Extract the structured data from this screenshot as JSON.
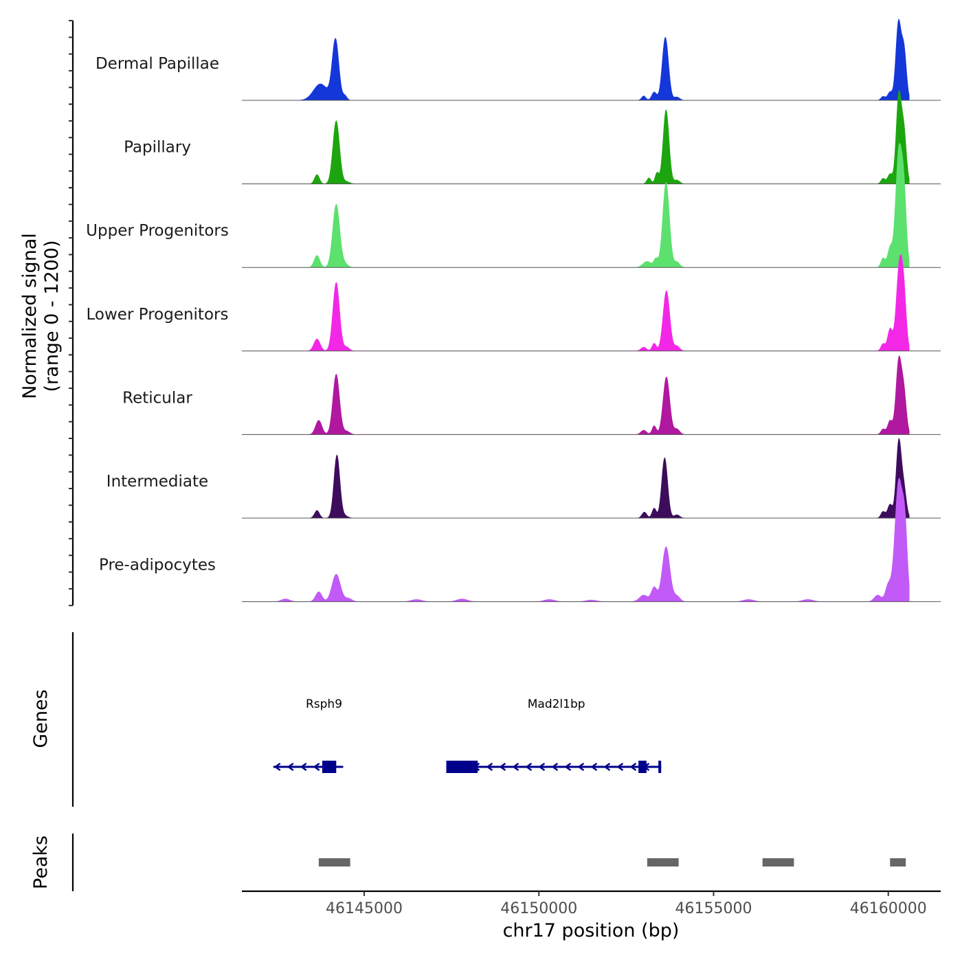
{
  "chart_data": {
    "type": "area",
    "subtype": "genome-coverage-tracks",
    "chromosome": "chr17",
    "xlabel": "chr17 position (bp)",
    "ylabel_line1": "Normalized signal",
    "ylabel_line2": "(range 0 - 1200)",
    "ylim": [
      0,
      1200
    ],
    "xlim": [
      46141500,
      46161500
    ],
    "x_ticks": [
      46145000,
      46150000,
      46155000,
      46160000
    ],
    "x_tick_labels": [
      "46145000",
      "46150000",
      "46155000",
      "46160000"
    ],
    "region_end": 46160600,
    "series": [
      {
        "name": "Dermal Papillae",
        "color": "#1437d9",
        "peaks": [
          {
            "center": 46143750,
            "height": 300,
            "width": 200
          },
          {
            "center": 46144180,
            "height": 1100,
            "width": 95
          },
          {
            "center": 46144450,
            "height": 80,
            "width": 60
          },
          {
            "center": 46153000,
            "height": 80,
            "width": 60
          },
          {
            "center": 46153300,
            "height": 150,
            "width": 70
          },
          {
            "center": 46153620,
            "height": 1150,
            "width": 90
          },
          {
            "center": 46153950,
            "height": 60,
            "width": 80
          },
          {
            "center": 46159850,
            "height": 70,
            "width": 60
          },
          {
            "center": 46160050,
            "height": 150,
            "width": 70
          },
          {
            "center": 46160290,
            "height": 1400,
            "width": 75
          },
          {
            "center": 46160450,
            "height": 900,
            "width": 70
          }
        ]
      },
      {
        "name": "Papillary",
        "color": "#1da50f",
        "peaks": [
          {
            "center": 46143650,
            "height": 170,
            "width": 70
          },
          {
            "center": 46144200,
            "height": 1150,
            "width": 95
          },
          {
            "center": 46144500,
            "height": 40,
            "width": 90
          },
          {
            "center": 46153150,
            "height": 110,
            "width": 60
          },
          {
            "center": 46153380,
            "height": 200,
            "width": 55
          },
          {
            "center": 46153640,
            "height": 1350,
            "width": 85
          },
          {
            "center": 46153950,
            "height": 70,
            "width": 80
          },
          {
            "center": 46159850,
            "height": 100,
            "width": 60
          },
          {
            "center": 46160050,
            "height": 180,
            "width": 70
          },
          {
            "center": 46160300,
            "height": 1600,
            "width": 75
          },
          {
            "center": 46160450,
            "height": 900,
            "width": 70
          }
        ]
      },
      {
        "name": "Upper Progenitors",
        "color": "#5ce06e",
        "peaks": [
          {
            "center": 46143650,
            "height": 220,
            "width": 80
          },
          {
            "center": 46144200,
            "height": 1150,
            "width": 100
          },
          {
            "center": 46144450,
            "height": 60,
            "width": 90
          },
          {
            "center": 46153100,
            "height": 110,
            "width": 120
          },
          {
            "center": 46153350,
            "height": 150,
            "width": 60
          },
          {
            "center": 46153640,
            "height": 1550,
            "width": 95
          },
          {
            "center": 46153950,
            "height": 100,
            "width": 80
          },
          {
            "center": 46159850,
            "height": 170,
            "width": 60
          },
          {
            "center": 46160050,
            "height": 350,
            "width": 70
          },
          {
            "center": 46160300,
            "height": 2100,
            "width": 90
          },
          {
            "center": 46160450,
            "height": 1200,
            "width": 70
          }
        ]
      },
      {
        "name": "Lower Progenitors",
        "color": "#f228e6",
        "peaks": [
          {
            "center": 46143650,
            "height": 220,
            "width": 90
          },
          {
            "center": 46144200,
            "height": 1250,
            "width": 95
          },
          {
            "center": 46144500,
            "height": 70,
            "width": 80
          },
          {
            "center": 46153000,
            "height": 70,
            "width": 80
          },
          {
            "center": 46153300,
            "height": 140,
            "width": 60
          },
          {
            "center": 46153650,
            "height": 1100,
            "width": 95
          },
          {
            "center": 46153950,
            "height": 90,
            "width": 80
          },
          {
            "center": 46159850,
            "height": 130,
            "width": 60
          },
          {
            "center": 46160050,
            "height": 400,
            "width": 70
          },
          {
            "center": 46160320,
            "height": 1550,
            "width": 90
          },
          {
            "center": 46160450,
            "height": 800,
            "width": 70
          }
        ]
      },
      {
        "name": "Reticular",
        "color": "#b0189f",
        "peaks": [
          {
            "center": 46143700,
            "height": 260,
            "width": 90
          },
          {
            "center": 46144200,
            "height": 1100,
            "width": 95
          },
          {
            "center": 46144500,
            "height": 60,
            "width": 90
          },
          {
            "center": 46153000,
            "height": 80,
            "width": 80
          },
          {
            "center": 46153300,
            "height": 160,
            "width": 60
          },
          {
            "center": 46153650,
            "height": 1050,
            "width": 95
          },
          {
            "center": 46153950,
            "height": 100,
            "width": 80
          },
          {
            "center": 46159850,
            "height": 100,
            "width": 60
          },
          {
            "center": 46160050,
            "height": 250,
            "width": 70
          },
          {
            "center": 46160300,
            "height": 1350,
            "width": 80
          },
          {
            "center": 46160450,
            "height": 700,
            "width": 70
          }
        ]
      },
      {
        "name": "Intermediate",
        "color": "#3d0c5c",
        "peaks": [
          {
            "center": 46143650,
            "height": 140,
            "width": 70
          },
          {
            "center": 46144220,
            "height": 1150,
            "width": 85
          },
          {
            "center": 46144450,
            "height": 40,
            "width": 90
          },
          {
            "center": 46153020,
            "height": 110,
            "width": 70
          },
          {
            "center": 46153300,
            "height": 180,
            "width": 60
          },
          {
            "center": 46153600,
            "height": 1100,
            "width": 85
          },
          {
            "center": 46153950,
            "height": 60,
            "width": 80
          },
          {
            "center": 46159850,
            "height": 120,
            "width": 60
          },
          {
            "center": 46160050,
            "height": 250,
            "width": 70
          },
          {
            "center": 46160300,
            "height": 1400,
            "width": 75
          },
          {
            "center": 46160450,
            "height": 500,
            "width": 70
          }
        ]
      },
      {
        "name": "Pre-adipocytes",
        "color": "#c15af7",
        "peaks": [
          {
            "center": 46142750,
            "height": 50,
            "width": 120
          },
          {
            "center": 46143700,
            "height": 180,
            "width": 90
          },
          {
            "center": 46144200,
            "height": 500,
            "width": 120
          },
          {
            "center": 46144550,
            "height": 60,
            "width": 100
          },
          {
            "center": 46146500,
            "height": 40,
            "width": 150
          },
          {
            "center": 46147800,
            "height": 50,
            "width": 150
          },
          {
            "center": 46150300,
            "height": 40,
            "width": 150
          },
          {
            "center": 46151500,
            "height": 30,
            "width": 150
          },
          {
            "center": 46153000,
            "height": 120,
            "width": 120
          },
          {
            "center": 46153300,
            "height": 260,
            "width": 80
          },
          {
            "center": 46153640,
            "height": 1000,
            "width": 110
          },
          {
            "center": 46153950,
            "height": 100,
            "width": 90
          },
          {
            "center": 46156000,
            "height": 40,
            "width": 150
          },
          {
            "center": 46157700,
            "height": 40,
            "width": 150
          },
          {
            "center": 46159700,
            "height": 120,
            "width": 100
          },
          {
            "center": 46160000,
            "height": 300,
            "width": 80
          },
          {
            "center": 46160300,
            "height": 2200,
            "width": 110
          },
          {
            "center": 46160480,
            "height": 1100,
            "width": 70
          }
        ]
      }
    ],
    "genes_track": {
      "title": "Genes",
      "color": "#00008b",
      "genes": [
        {
          "name": "Rsph9",
          "start": 46142400,
          "end": 46144400,
          "strand": "-",
          "exons": [
            [
              46143800,
              46144200
            ]
          ],
          "label_at": 46143850
        },
        {
          "name": "Mad2l1bp",
          "start": 46147350,
          "end": 46153500,
          "strand": "-",
          "exons": [
            [
              46147350,
              46148250
            ],
            [
              46152850,
              46153080
            ],
            [
              46153420,
              46153500
            ]
          ],
          "label_at": 46150500
        }
      ]
    },
    "peaks_track": {
      "title": "Peaks",
      "color": "#666666",
      "regions": [
        [
          46143700,
          46144600
        ],
        [
          46153100,
          46154000
        ],
        [
          46156400,
          46157300
        ],
        [
          46160050,
          46160500
        ]
      ]
    }
  }
}
